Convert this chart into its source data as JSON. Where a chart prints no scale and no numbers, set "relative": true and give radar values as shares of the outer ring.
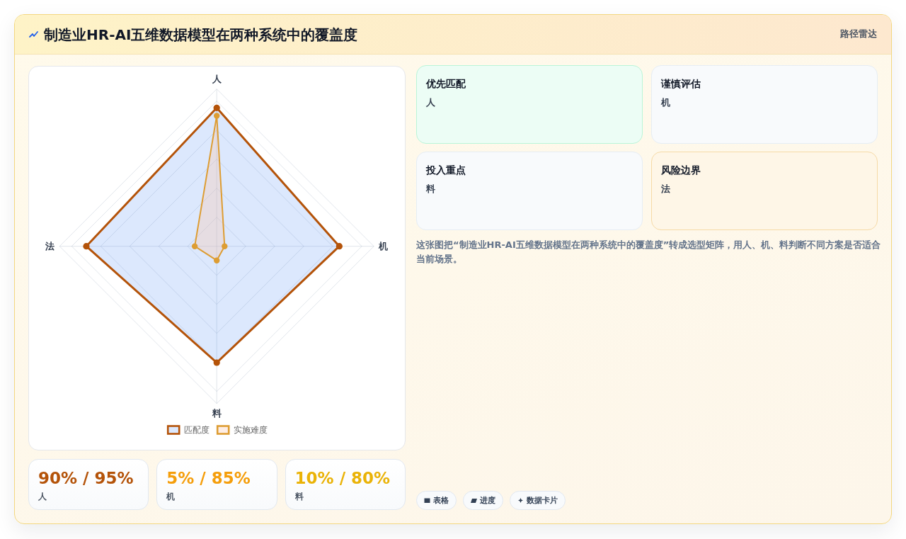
{
  "chart_data": [
    {
      "type": "other",
      "title": "制造业HR-AI五维数据模型在两种系统中的覆盖度",
      "subtitle": "路径雷达"
    },
    {
      "type": "radar",
      "categories": [
        "人",
        "机",
        "料",
        "法"
      ],
      "series": [
        {
          "name": "匹配度",
          "color": "#b45309",
          "values": [
            0.88,
            0.78,
            0.74,
            0.83
          ]
        },
        {
          "name": "实施难度",
          "color": "#dd9d33",
          "values": [
            0.83,
            0.05,
            0.09,
            0.14
          ]
        }
      ],
      "relative": true,
      "grid": true,
      "legend": "bottom",
      "marker": "circle"
    },
    {
      "type": "other",
      "categories": [
        "人",
        "机",
        "料"
      ],
      "value_labels": [
        "90% / 95%",
        "5% / 85%",
        "10% / 80%"
      ],
      "colors": [
        "#b45309",
        "#f59e0b",
        "#eab308"
      ]
    },
    {
      "type": "other",
      "categories": [
        "优先匹配",
        "谨慎评估",
        "投入重点",
        "风险边界"
      ],
      "value_labels": [
        "人",
        "机",
        "料",
        "法"
      ],
      "colors": [
        "#ecfdf5",
        "#f8fafc",
        "#f8fafc",
        "#fef6e7"
      ],
      "annotations": [
        "这张图把“制造业HR-AI五维数据模型在两种系统中的覆盖度”转成选型矩阵，用人、机、料判断不同方案是否适合当前场景。",
        "表格",
        "进度",
        "数据卡片"
      ]
    }
  ]
}
